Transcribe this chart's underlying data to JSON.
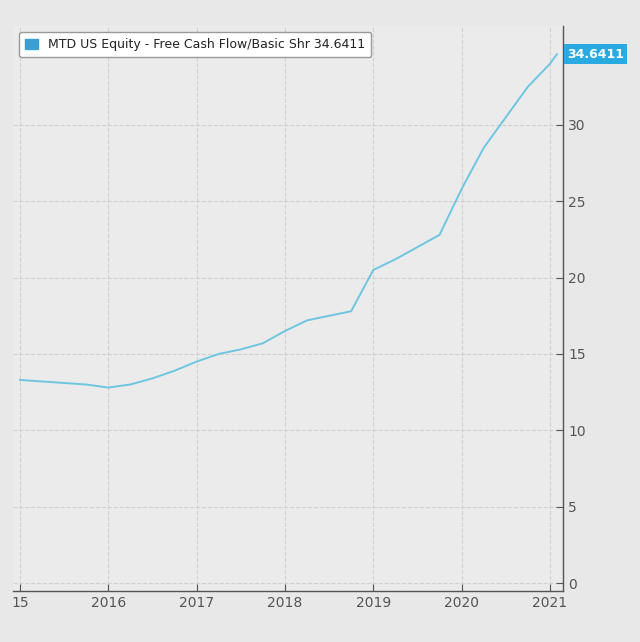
{
  "x_values": [
    2015.0,
    2015.25,
    2015.5,
    2015.75,
    2016.0,
    2016.25,
    2016.5,
    2016.75,
    2017.0,
    2017.25,
    2017.5,
    2017.75,
    2018.0,
    2018.25,
    2018.5,
    2018.75,
    2019.0,
    2019.25,
    2019.5,
    2019.75,
    2020.0,
    2020.25,
    2020.5,
    2020.75,
    2021.0,
    2021.08
  ],
  "y_values": [
    13.3,
    13.2,
    13.1,
    13.0,
    12.8,
    13.0,
    13.4,
    13.9,
    14.5,
    15.0,
    15.3,
    15.7,
    16.5,
    17.2,
    17.5,
    17.8,
    20.5,
    21.2,
    22.0,
    22.8,
    25.8,
    28.5,
    30.5,
    32.5,
    34.0,
    34.6411
  ],
  "line_color": "#6ec6e0",
  "line_width": 1.4,
  "background_color": "#e8e8e8",
  "plot_bg_color": "#ebebeb",
  "grid_color": "#d0d0d0",
  "legend_label": "MTD US Equity - Free Cash Flow/Basic Shr 34.6411",
  "legend_box_color": "#3b9fd4",
  "current_value_label": "34.6411",
  "current_value_bg": "#29abe2",
  "current_value_text_color": "#ffffff",
  "xlim": [
    2014.92,
    2021.15
  ],
  "ylim": [
    -0.5,
    36.5
  ],
  "xtick_positions": [
    2015,
    2016,
    2017,
    2018,
    2019,
    2020,
    2021
  ],
  "xtick_labels": [
    "15",
    "2016",
    "2017",
    "2018",
    "2019",
    "2020",
    "2021"
  ],
  "ytick_positions": [
    0,
    5,
    10,
    15,
    20,
    25,
    30
  ],
  "ytick_labels": [
    "0",
    "5",
    "10",
    "15",
    "20",
    "25",
    "30"
  ],
  "ytick_color": "#555555",
  "xtick_color": "#555555",
  "spine_color": "#555555"
}
